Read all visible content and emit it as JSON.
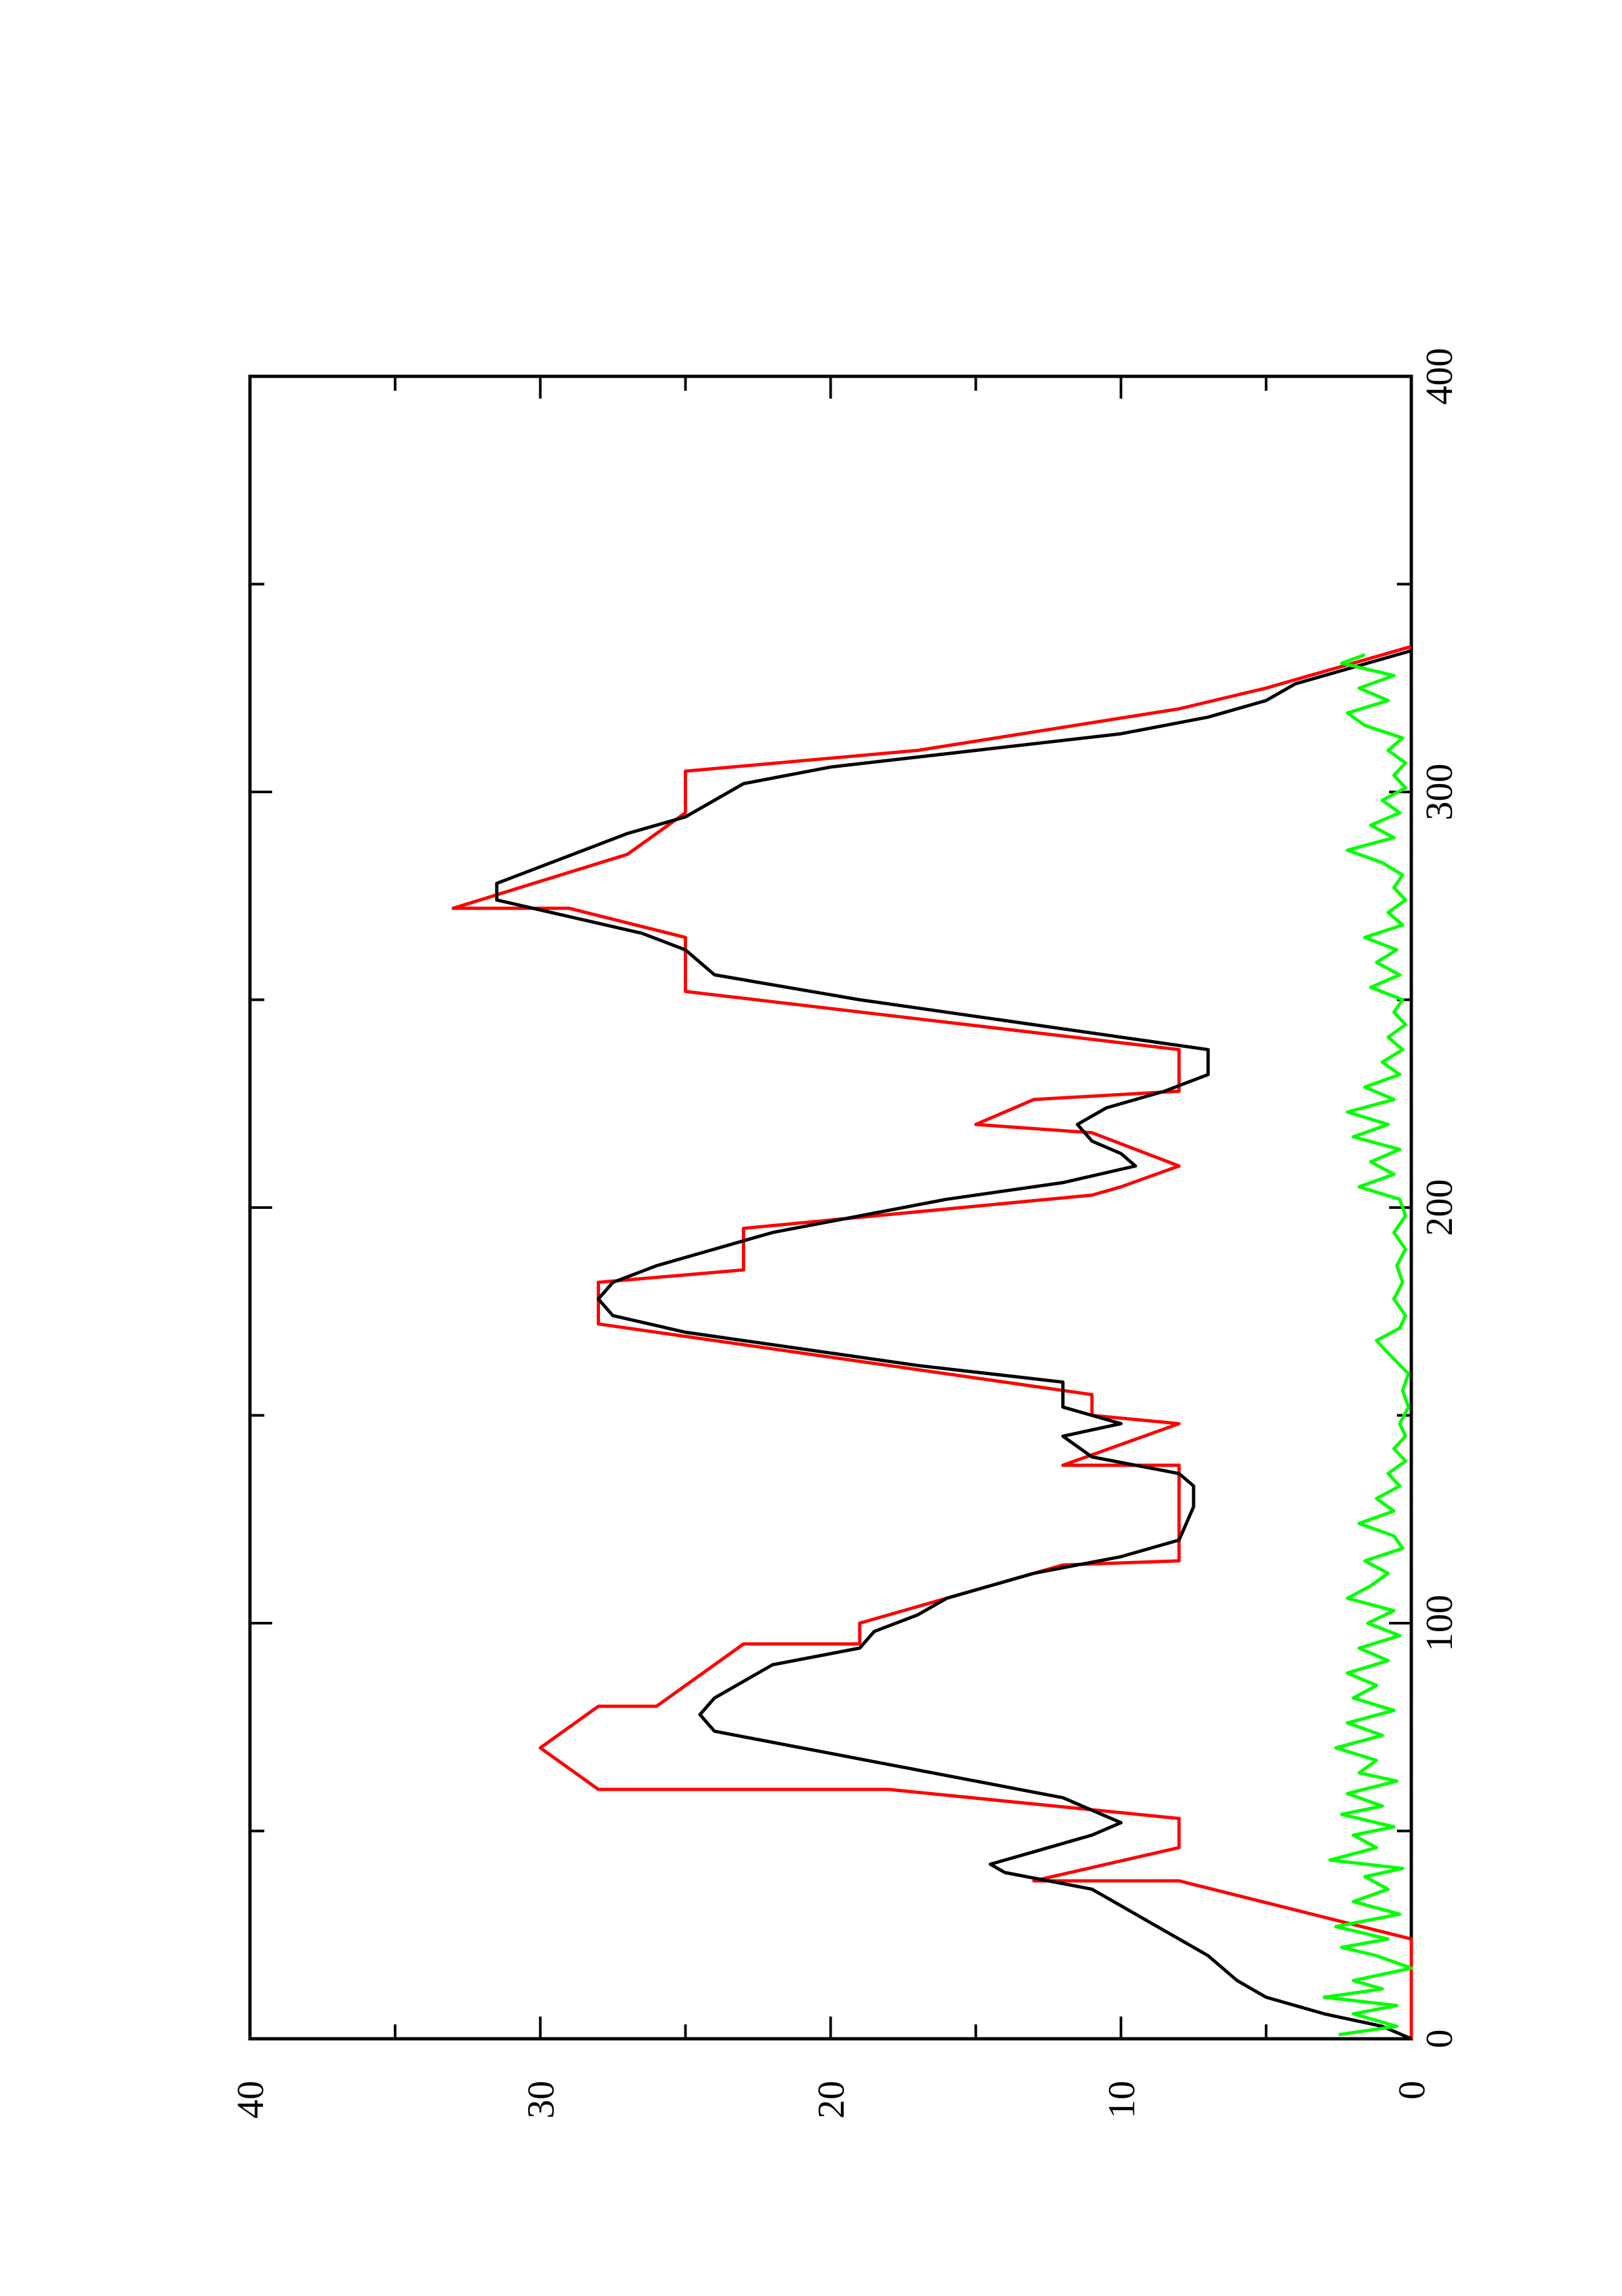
{
  "chart_data": {
    "type": "line",
    "title": "",
    "xlabel": "",
    "ylabel": "",
    "orientation": "rotated 90 degrees counter-clockwise",
    "xlim": [
      0,
      400
    ],
    "ylim": [
      0,
      40
    ],
    "x_ticks": [
      {
        "value": 0,
        "label": "0"
      },
      {
        "value": 100,
        "label": "100"
      },
      {
        "value": 200,
        "label": "200"
      },
      {
        "value": 300,
        "label": "300"
      },
      {
        "value": 400,
        "label": "400"
      }
    ],
    "x_minor_ticks": [
      50,
      150,
      250,
      350
    ],
    "y_ticks": [
      {
        "value": 0,
        "label": "0"
      },
      {
        "value": 10,
        "label": "10"
      },
      {
        "value": 20,
        "label": "20"
      },
      {
        "value": 30,
        "label": "30"
      },
      {
        "value": 40,
        "label": "40"
      }
    ],
    "y_minor_ticks": [
      5,
      15,
      25,
      35
    ],
    "grid": false,
    "legend": "none",
    "series": [
      {
        "color": "#ff0000",
        "points": [
          [
            0,
            0
          ],
          [
            24,
            0
          ],
          [
            38,
            8
          ],
          [
            38,
            13
          ],
          [
            46,
            8
          ],
          [
            53,
            8
          ],
          [
            60,
            18
          ],
          [
            60,
            28
          ],
          [
            70,
            30
          ],
          [
            80,
            28
          ],
          [
            80,
            26
          ],
          [
            95,
            23
          ],
          [
            95,
            19
          ],
          [
            100,
            19
          ],
          [
            108,
            15
          ],
          [
            114,
            12
          ],
          [
            115,
            8
          ],
          [
            123,
            8
          ],
          [
            138,
            8
          ],
          [
            138,
            12
          ],
          [
            148,
            8
          ],
          [
            150,
            11
          ],
          [
            155,
            11
          ],
          [
            172,
            28
          ],
          [
            182,
            28
          ],
          [
            185,
            23
          ],
          [
            195,
            23
          ],
          [
            203,
            11
          ],
          [
            205,
            10
          ],
          [
            210,
            8
          ],
          [
            218,
            11
          ],
          [
            220,
            15
          ],
          [
            226,
            13
          ],
          [
            228,
            8
          ],
          [
            238,
            8
          ],
          [
            252,
            25
          ],
          [
            265,
            25
          ],
          [
            272,
            29
          ],
          [
            272,
            33
          ],
          [
            285,
            27
          ],
          [
            295,
            25
          ],
          [
            305,
            25
          ],
          [
            310,
            17
          ],
          [
            320,
            8
          ],
          [
            325,
            5
          ],
          [
            335,
            0
          ]
        ]
      },
      {
        "color": "#000000",
        "points": [
          [
            0,
            0
          ],
          [
            3,
            1
          ],
          [
            6,
            3
          ],
          [
            10,
            5
          ],
          [
            14,
            6
          ],
          [
            20,
            7
          ],
          [
            24,
            8
          ],
          [
            28,
            9
          ],
          [
            32,
            10
          ],
          [
            36,
            11
          ],
          [
            40,
            14
          ],
          [
            42,
            14.5
          ],
          [
            45,
            13
          ],
          [
            49,
            11
          ],
          [
            52,
            10
          ],
          [
            55,
            11
          ],
          [
            58,
            12
          ],
          [
            62,
            15
          ],
          [
            66,
            18
          ],
          [
            70,
            21
          ],
          [
            74,
            24
          ],
          [
            78,
            24.5
          ],
          [
            82,
            24
          ],
          [
            86,
            23
          ],
          [
            90,
            22
          ],
          [
            94,
            19
          ],
          [
            98,
            18.5
          ],
          [
            102,
            17
          ],
          [
            106,
            16
          ],
          [
            112,
            13
          ],
          [
            116,
            10
          ],
          [
            120,
            8
          ],
          [
            128,
            7.5
          ],
          [
            133,
            7.5
          ],
          [
            136,
            8
          ],
          [
            140,
            11
          ],
          [
            145,
            12
          ],
          [
            148,
            10
          ],
          [
            152,
            12
          ],
          [
            158,
            12
          ],
          [
            162,
            17
          ],
          [
            166,
            21
          ],
          [
            170,
            25
          ],
          [
            174,
            27.5
          ],
          [
            178,
            28
          ],
          [
            182,
            27.5
          ],
          [
            186,
            26
          ],
          [
            190,
            24
          ],
          [
            194,
            22
          ],
          [
            198,
            19
          ],
          [
            202,
            16
          ],
          [
            206,
            12
          ],
          [
            210,
            9.5
          ],
          [
            213,
            10
          ],
          [
            216,
            11
          ],
          [
            220,
            11.5
          ],
          [
            224,
            10.5
          ],
          [
            228,
            8.5
          ],
          [
            232,
            7
          ],
          [
            238,
            7
          ],
          [
            244,
            13
          ],
          [
            250,
            19
          ],
          [
            256,
            24
          ],
          [
            262,
            25
          ],
          [
            266,
            26.5
          ],
          [
            270,
            29
          ],
          [
            274,
            31.5
          ],
          [
            278,
            31.5
          ],
          [
            282,
            30
          ],
          [
            286,
            28.5
          ],
          [
            290,
            27
          ],
          [
            294,
            25
          ],
          [
            298,
            24
          ],
          [
            302,
            23
          ],
          [
            306,
            20
          ],
          [
            310,
            15
          ],
          [
            314,
            10
          ],
          [
            318,
            7
          ],
          [
            322,
            5
          ],
          [
            326,
            4
          ],
          [
            330,
            2
          ],
          [
            334,
            0
          ]
        ]
      },
      {
        "color": "#00ff00",
        "points": [
          [
            1,
            2.5
          ],
          [
            3,
            0.5
          ],
          [
            6,
            2
          ],
          [
            8,
            0.5
          ],
          [
            10,
            3
          ],
          [
            12,
            1
          ],
          [
            14,
            2
          ],
          [
            17,
            0
          ],
          [
            20,
            1.2
          ],
          [
            22,
            2.4
          ],
          [
            24,
            0.8
          ],
          [
            27,
            2.6
          ],
          [
            30,
            0.4
          ],
          [
            33,
            2
          ],
          [
            36,
            0.8
          ],
          [
            39,
            1.6
          ],
          [
            41,
            0.3
          ],
          [
            43,
            2.8
          ],
          [
            46,
            1.2
          ],
          [
            49,
            2
          ],
          [
            51,
            0.6
          ],
          [
            54,
            2.4
          ],
          [
            56,
            1
          ],
          [
            59,
            2.2
          ],
          [
            62,
            0.5
          ],
          [
            64,
            1.8
          ],
          [
            67,
            1.2
          ],
          [
            70,
            2.6
          ],
          [
            73,
            1
          ],
          [
            76,
            2.2
          ],
          [
            79,
            0.6
          ],
          [
            82,
            2
          ],
          [
            85,
            1.2
          ],
          [
            88,
            2.2
          ],
          [
            91,
            0.8
          ],
          [
            94,
            1.8
          ],
          [
            97,
            0.4
          ],
          [
            100,
            1.5
          ],
          [
            103,
            0.6
          ],
          [
            106,
            2.2
          ],
          [
            109,
            1.4
          ],
          [
            112,
            0.8
          ],
          [
            115,
            1.6
          ],
          [
            118,
            0.3
          ],
          [
            121,
            0.6
          ],
          [
            124,
            1.8
          ],
          [
            127,
            0.6
          ],
          [
            130,
            1.2
          ],
          [
            133,
            0.4
          ],
          [
            136,
            0.8
          ],
          [
            139,
            0.2
          ],
          [
            142,
            0.6
          ],
          [
            145,
            0.2
          ],
          [
            148,
            0.4
          ],
          [
            152,
            0.1
          ],
          [
            156,
            0.3
          ],
          [
            160,
            0.1
          ],
          [
            165,
            0.8
          ],
          [
            168,
            1.2
          ],
          [
            171,
            0.4
          ],
          [
            174,
            0.2
          ],
          [
            178,
            0.6
          ],
          [
            182,
            0.3
          ],
          [
            186,
            0.5
          ],
          [
            190,
            0.2
          ],
          [
            194,
            0.6
          ],
          [
            198,
            0.2
          ],
          [
            202,
            0.4
          ],
          [
            205,
            1.8
          ],
          [
            208,
            0.6
          ],
          [
            211,
            1.4
          ],
          [
            214,
            0.4
          ],
          [
            217,
            2
          ],
          [
            220,
            0.8
          ],
          [
            223,
            2.2
          ],
          [
            226,
            0.6
          ],
          [
            229,
            1.6
          ],
          [
            232,
            0.4
          ],
          [
            235,
            1
          ],
          [
            238,
            0.3
          ],
          [
            241,
            0.8
          ],
          [
            244,
            0.2
          ],
          [
            247,
            0.6
          ],
          [
            250,
            0.3
          ],
          [
            253,
            1.4
          ],
          [
            256,
            0.4
          ],
          [
            259,
            1.2
          ],
          [
            262,
            0.5
          ],
          [
            265,
            1.6
          ],
          [
            268,
            0.3
          ],
          [
            271,
            0.8
          ],
          [
            274,
            0.2
          ],
          [
            277,
            0.6
          ],
          [
            280,
            0.3
          ],
          [
            283,
            1
          ],
          [
            286,
            2.2
          ],
          [
            289,
            0.6
          ],
          [
            292,
            1.4
          ],
          [
            295,
            0.4
          ],
          [
            298,
            1
          ],
          [
            301,
            0.2
          ],
          [
            304,
            0.6
          ],
          [
            307,
            0.2
          ],
          [
            310,
            0.8
          ],
          [
            313,
            0.3
          ],
          [
            316,
            1.6
          ],
          [
            319,
            2.2
          ],
          [
            322,
            0.8
          ],
          [
            325,
            1.8
          ],
          [
            328,
            0.6
          ],
          [
            331,
            2.4
          ],
          [
            333,
            1.6
          ]
        ]
      }
    ]
  }
}
